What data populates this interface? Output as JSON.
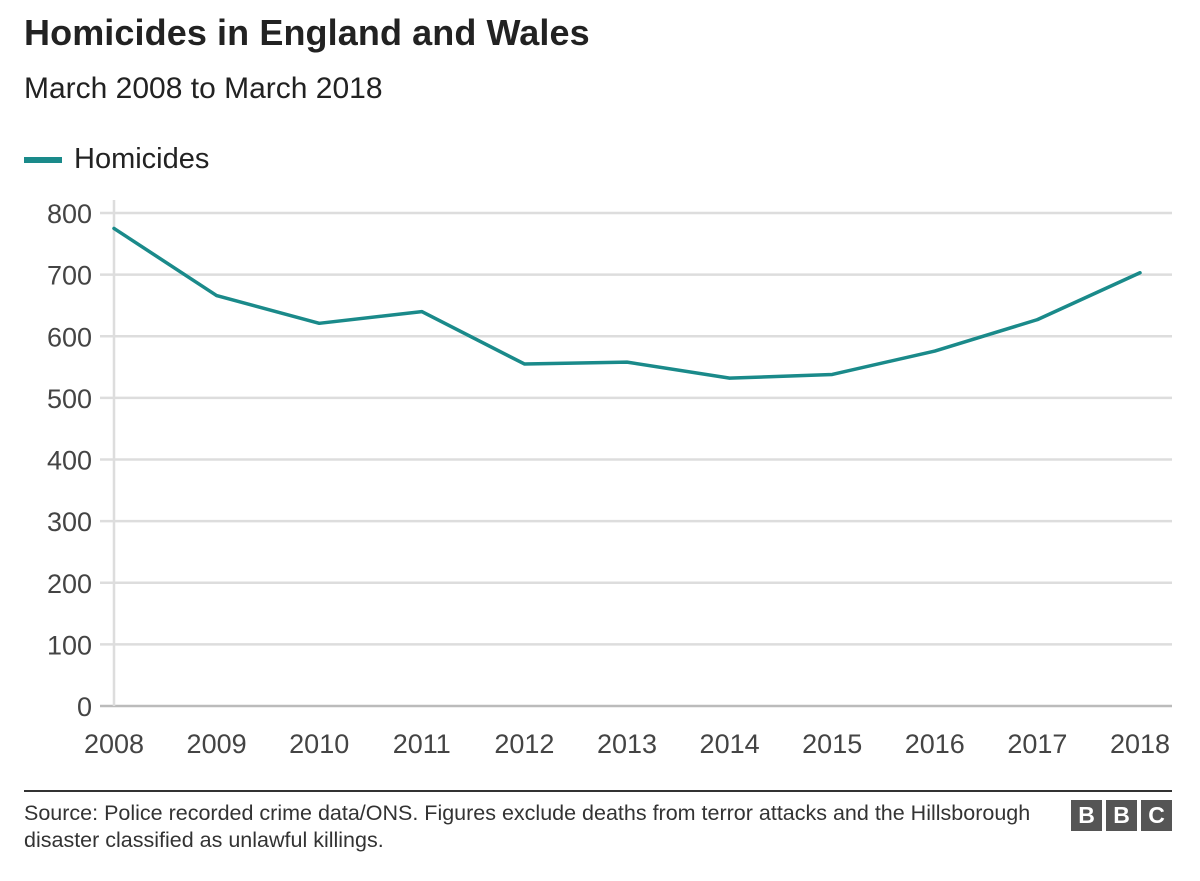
{
  "chart_data": {
    "type": "line",
    "title": "Homicides in England and Wales",
    "subtitle": "March 2008 to March 2018",
    "xlabel": "",
    "ylabel": "",
    "categories": [
      "2008",
      "2009",
      "2010",
      "2011",
      "2012",
      "2013",
      "2014",
      "2015",
      "2016",
      "2017",
      "2018"
    ],
    "ylim": [
      0,
      800
    ],
    "yticks": [
      "0",
      "100",
      "200",
      "300",
      "400",
      "500",
      "600",
      "700",
      "800"
    ],
    "series": [
      {
        "name": "Homicides",
        "values": [
          775,
          666,
          621,
          640,
          555,
          558,
          532,
          538,
          576,
          627,
          703
        ]
      }
    ],
    "grid": true,
    "legend_position": "top-left"
  },
  "colors": {
    "series": "#1a8a8a",
    "grid": "#dddddd",
    "axis": "#bbbbbb",
    "text": "#222222"
  },
  "source": {
    "text": "Source: Police recorded crime data/ONS. Figures exclude deaths from terror attacks and the Hillsborough disaster classified as unlawful killings."
  },
  "logo": {
    "letters": [
      "B",
      "B",
      "C"
    ]
  }
}
